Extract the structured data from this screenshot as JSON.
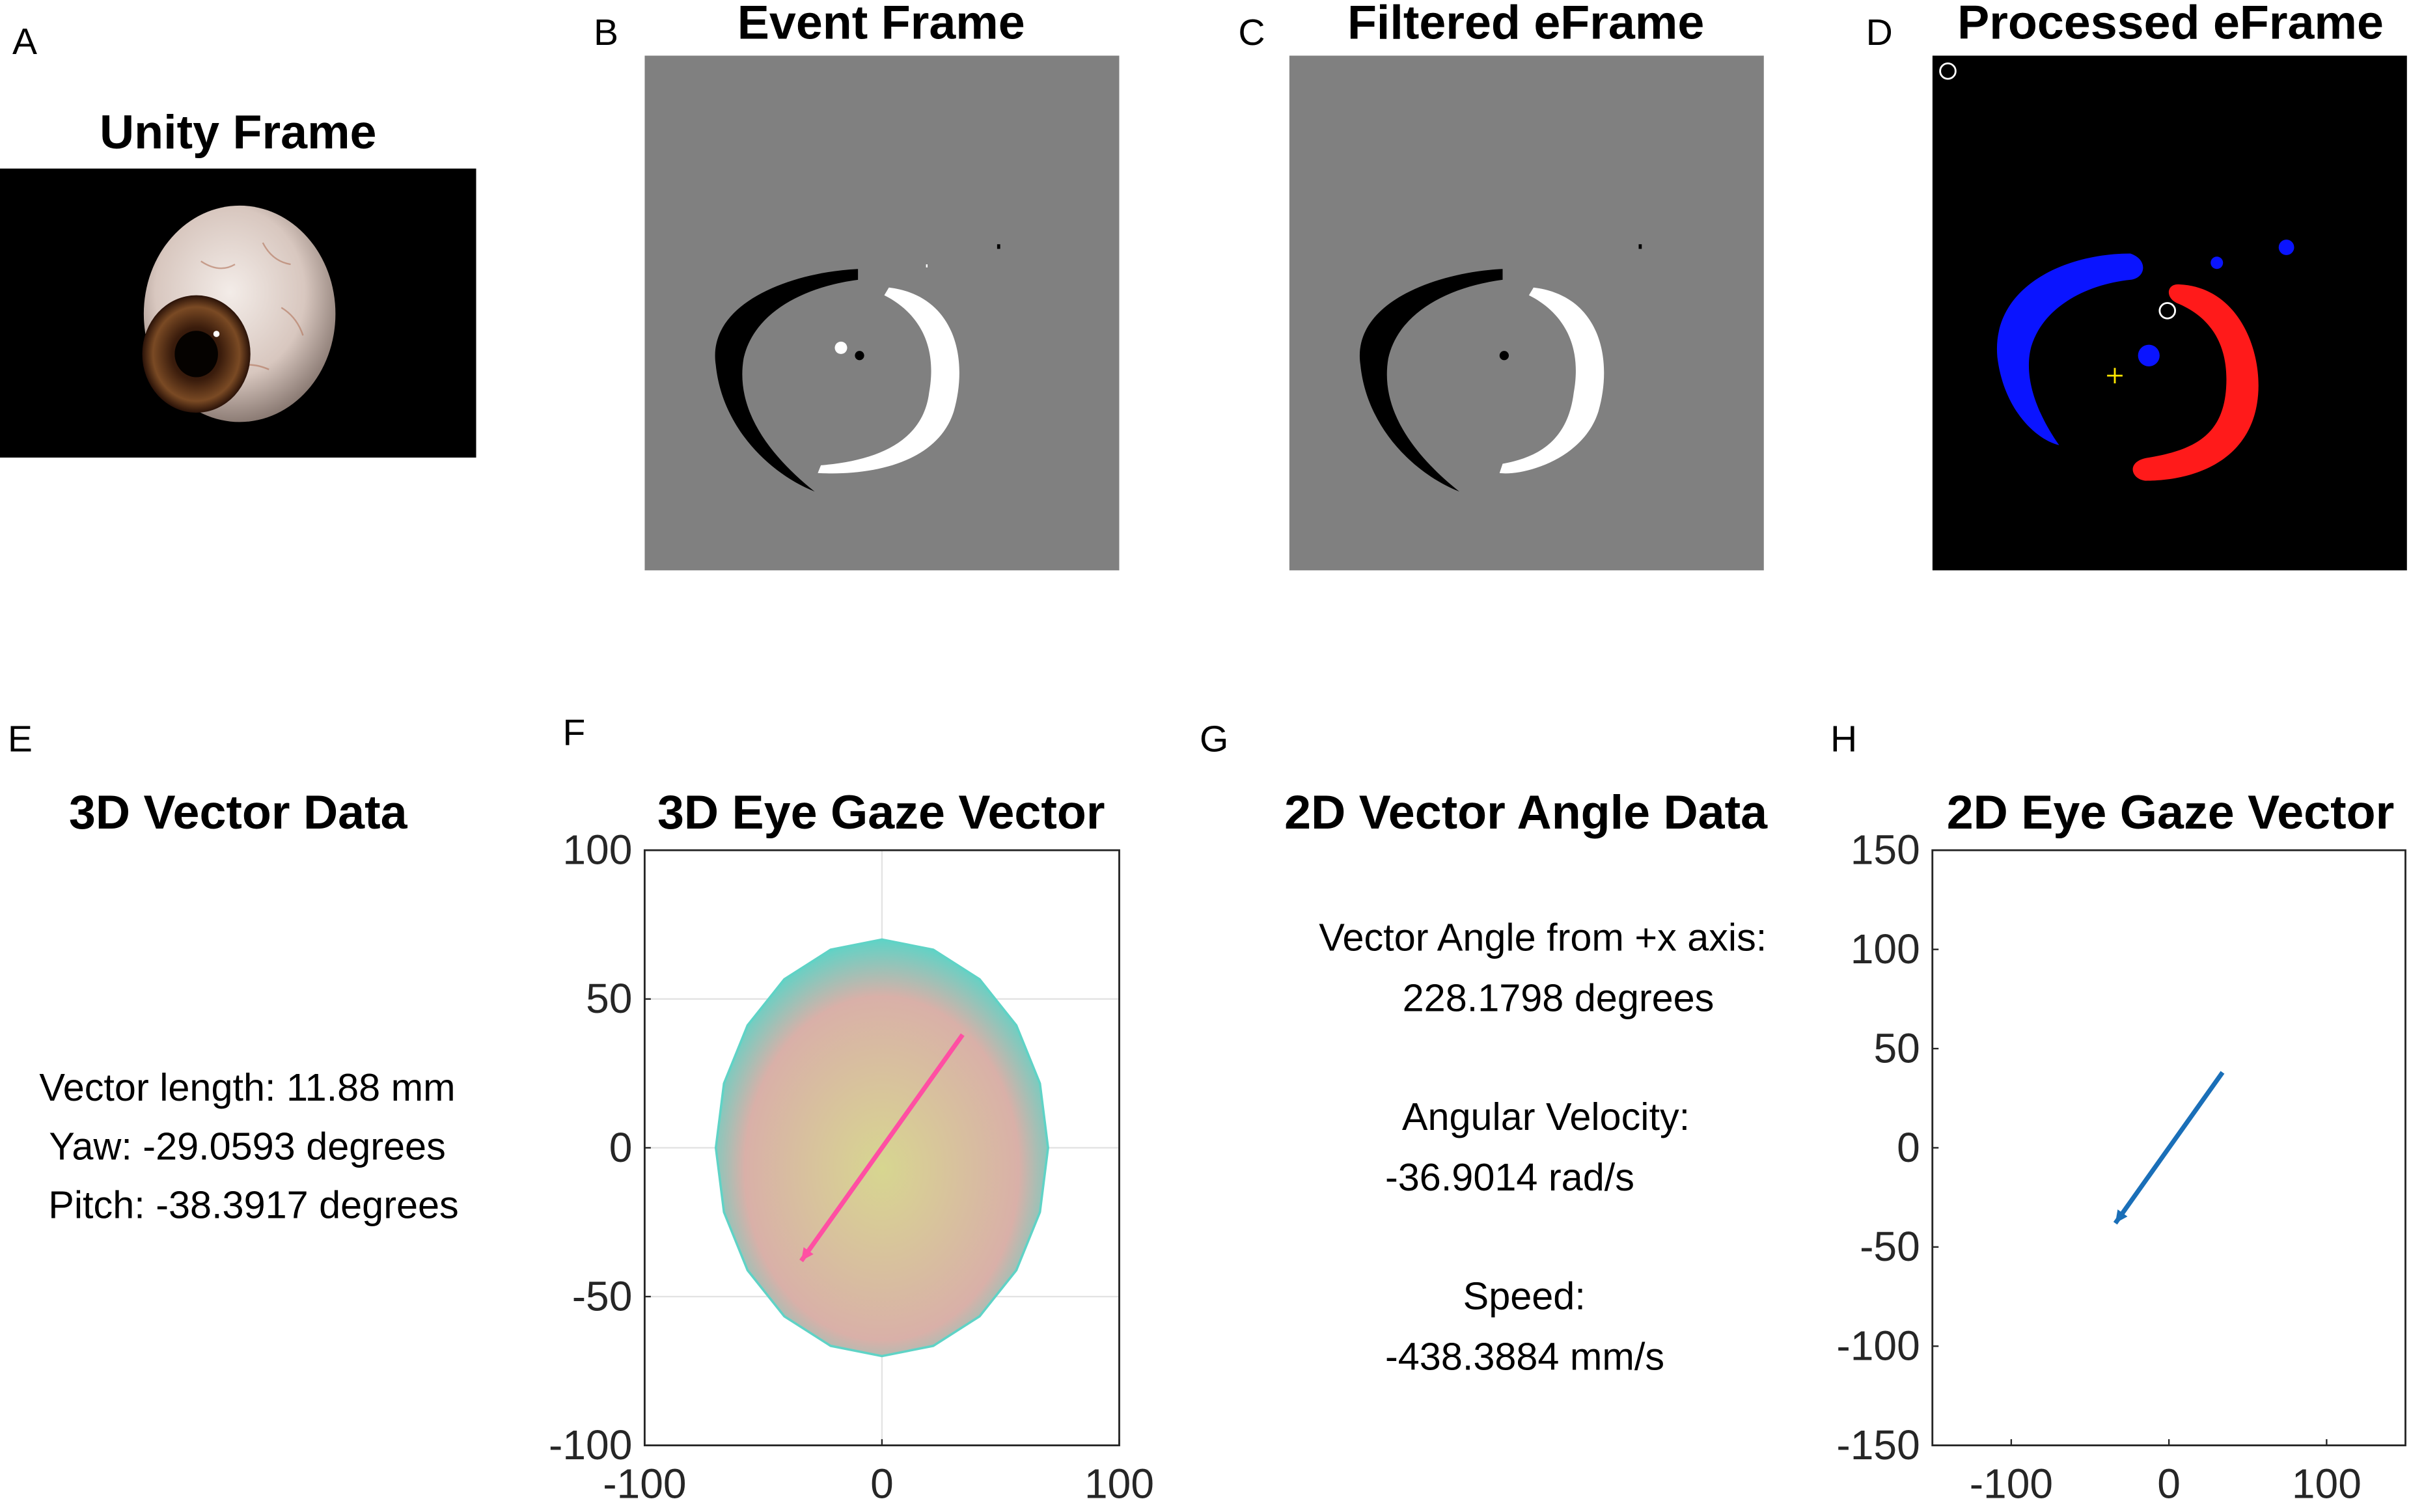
{
  "panels": {
    "A": {
      "label": "A",
      "title": "Unity Frame"
    },
    "B": {
      "label": "B",
      "title": "Event Frame"
    },
    "C": {
      "label": "C",
      "title": "Filtered eFrame"
    },
    "D": {
      "label": "D",
      "title": "Processed eFrame"
    },
    "E": {
      "label": "E",
      "title": "3D Vector Data",
      "lines": [
        "Vector length: 11.88 mm",
        "Yaw: -29.0593 degrees",
        "Pitch: -38.3917 degrees"
      ]
    },
    "F": {
      "label": "F",
      "title": "3D Eye Gaze Vector"
    },
    "G": {
      "label": "G",
      "title": "2D Vector Angle Data",
      "lines": [
        "Vector Angle from +x axis:",
        "228.1798 degrees",
        "Angular Velocity:",
        "-36.9014 rad/s",
        "Speed:",
        "-438.3884 mm/s"
      ]
    },
    "H": {
      "label": "H",
      "title": "2D Eye Gaze Vector"
    }
  },
  "colors": {
    "gray_frame": "#808080",
    "processed_bg": "#000000",
    "blue_blob": "#0a14ff",
    "red_blob": "#ff1a1a",
    "sphere_edge": "#5fd3c6",
    "sphere_fill": "#d9b0a8",
    "arrow_3d": "#ff4fa3",
    "arrow_2d": "#1a6fb8"
  },
  "chart_data": [
    {
      "type": "line",
      "panel": "F",
      "title": "3D Eye Gaze Vector",
      "xlim": [
        -100,
        100
      ],
      "ylim": [
        -100,
        100
      ],
      "xticks": [
        "-100",
        "0",
        "100"
      ],
      "yticks": [
        "100",
        "50",
        "0",
        "-50",
        "-100"
      ],
      "grid": true,
      "sphere_radius": 70,
      "vector": {
        "from": [
          34,
          38
        ],
        "to": [
          -34,
          -38
        ]
      }
    },
    {
      "type": "line",
      "panel": "H",
      "title": "2D Eye Gaze Vector",
      "xlim": [
        -150,
        150
      ],
      "ylim": [
        -150,
        150
      ],
      "xticks": [
        "-100",
        "0",
        "100"
      ],
      "yticks": [
        "150",
        "100",
        "50",
        "0",
        "-50",
        "-100",
        "-150"
      ],
      "grid": false,
      "vector": {
        "from": [
          34,
          38
        ],
        "to": [
          -34,
          -38
        ]
      }
    }
  ]
}
